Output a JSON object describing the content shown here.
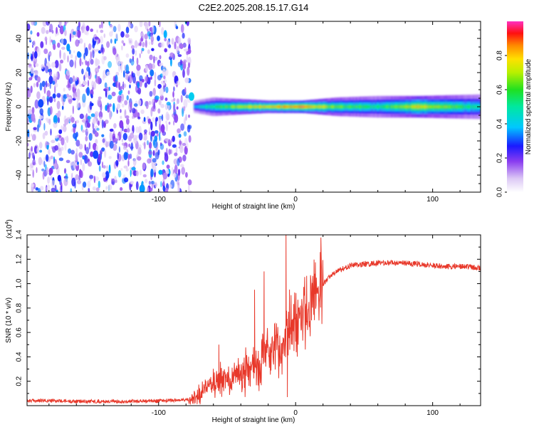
{
  "title": "C2E2.2025.208.15.17.G14",
  "chart_data": [
    {
      "type": "heatmap",
      "xlabel": "Height of straight line (km)",
      "ylabel": "Frequency (Hz)",
      "xlim": [
        -196,
        135
      ],
      "ylim": [
        -50,
        50
      ],
      "xticks": [
        -100,
        0,
        100
      ],
      "yticks": [
        -40,
        -20,
        0,
        20,
        40
      ],
      "colorbar": {
        "label": "Normalized spectral amplitude",
        "range": [
          0,
          1
        ],
        "ticks": [
          "0.0",
          "0.2",
          "0.4",
          "0.6",
          "0.8"
        ],
        "tick_values": [
          0,
          0.2,
          0.4,
          0.6,
          0.8
        ]
      },
      "regions": [
        {
          "name": "noise",
          "x": [
            -196,
            -77
          ],
          "y": [
            -50,
            50
          ],
          "amplitude": 0.15
        },
        {
          "name": "signal",
          "x": [
            -77,
            135
          ],
          "center_freq": 0,
          "peak_amplitude": 1.0
        }
      ],
      "noise_hotspots": [
        {
          "x": -112,
          "y": -48,
          "amplitude": 0.35
        },
        {
          "x": -186,
          "y": 2,
          "amplitude": 0.3
        },
        {
          "x": -146,
          "y": -28,
          "amplitude": 0.3
        },
        {
          "x": -76,
          "y": 6,
          "amplitude": 0.4
        }
      ],
      "signal_trace": [
        {
          "x": -74,
          "width": 2,
          "amplitude": 0.45
        },
        {
          "x": -60,
          "width": 3,
          "amplitude": 0.6
        },
        {
          "x": -40,
          "width": 2.5,
          "amplitude": 0.8
        },
        {
          "x": -20,
          "width": 2,
          "amplitude": 0.9
        },
        {
          "x": 5,
          "width": 2,
          "amplitude": 1.0
        },
        {
          "x": 30,
          "width": 3,
          "amplitude": 0.7
        },
        {
          "x": 60,
          "width": 3.5,
          "amplitude": 0.6
        },
        {
          "x": 90,
          "width": 3.5,
          "amplitude": 0.85
        },
        {
          "x": 135,
          "width": 4,
          "amplitude": 0.55
        }
      ]
    },
    {
      "type": "line",
      "xlabel": "Height of straight line (km)",
      "ylabel": "SNR (10 * v/v)",
      "y_multiplier": "(x10",
      "y_multiplier_exp": "4",
      "y_multiplier_close": ")",
      "xlim": [
        -196,
        135
      ],
      "ylim": [
        0,
        1.4
      ],
      "xticks": [
        -100,
        0,
        100
      ],
      "yticks": [
        "0.2",
        "0.4",
        "0.6",
        "0.8",
        "1.0",
        "1.2",
        "1.4"
      ],
      "ytick_values": [
        0.2,
        0.4,
        0.6,
        0.8,
        1.0,
        1.2,
        1.4
      ],
      "series": [
        {
          "color": "#e8382a",
          "x": [
            -196,
            -180,
            -160,
            -140,
            -120,
            -100,
            -85,
            -77,
            -70,
            -65,
            -60,
            -55,
            -50,
            -45,
            -40,
            -35,
            -30,
            -25,
            -20,
            -15,
            -10,
            -7,
            -5,
            0,
            5,
            10,
            15,
            20,
            25,
            30,
            40,
            50,
            60,
            70,
            80,
            90,
            100,
            110,
            120,
            135
          ],
          "y": [
            0.04,
            0.04,
            0.035,
            0.035,
            0.035,
            0.04,
            0.045,
            0.05,
            0.1,
            0.14,
            0.18,
            0.2,
            0.22,
            0.26,
            0.28,
            0.3,
            0.34,
            0.38,
            0.42,
            0.46,
            0.5,
            0.55,
            0.6,
            0.7,
            0.78,
            0.85,
            0.92,
            1.0,
            1.06,
            1.1,
            1.15,
            1.16,
            1.17,
            1.17,
            1.17,
            1.16,
            1.15,
            1.14,
            1.14,
            1.13
          ]
        }
      ],
      "spikes": [
        {
          "x": -7,
          "y": 1.4
        },
        {
          "x": -6,
          "y": 0.07
        },
        {
          "x": -23,
          "y": 1.1
        },
        {
          "x": -30,
          "y": 0.95
        },
        {
          "x": -56,
          "y": 0.5
        }
      ]
    }
  ]
}
